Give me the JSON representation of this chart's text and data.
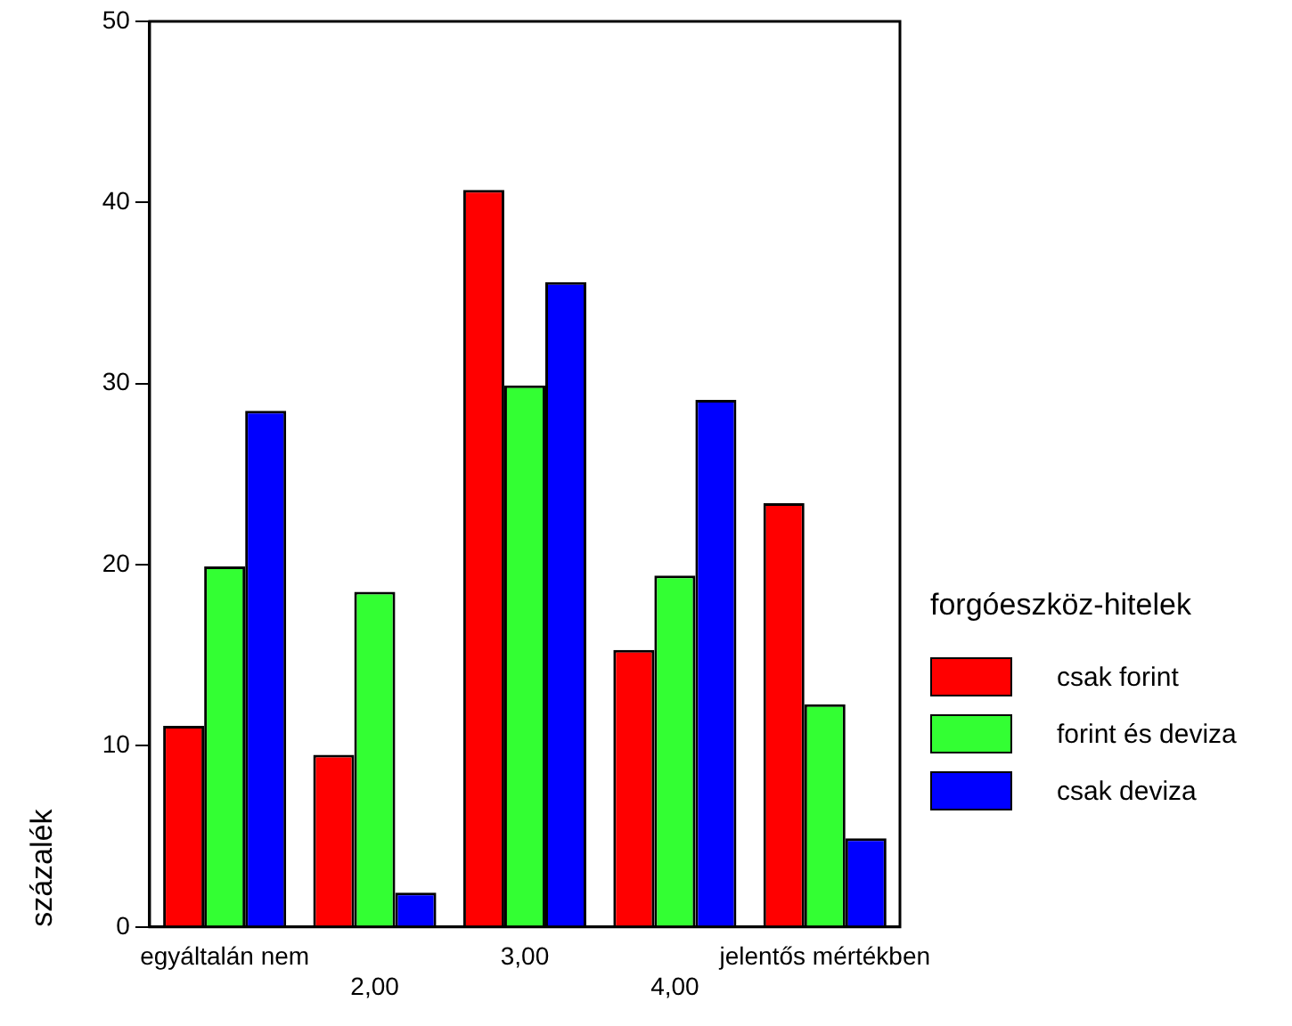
{
  "chart_data": {
    "type": "bar",
    "ylabel": "százalék",
    "legend_title": "forgóeszköz-hitelek",
    "categories": [
      "egyáltalán nem",
      "2,00",
      "3,00",
      "4,00",
      "jelentős mértékben"
    ],
    "series": [
      {
        "name": "csak forint",
        "color": "#ff0000",
        "values": [
          11.1,
          9.5,
          40.7,
          15.3,
          23.4
        ]
      },
      {
        "name": "forint és deviza",
        "color": "#33ff33",
        "values": [
          19.9,
          18.5,
          29.9,
          19.4,
          12.3
        ]
      },
      {
        "name": "csak deviza",
        "color": "#0000ff",
        "values": [
          28.5,
          1.9,
          35.6,
          29.1,
          4.9
        ]
      }
    ],
    "ylim": [
      0,
      50
    ],
    "yticks": [
      0,
      10,
      20,
      30,
      40,
      50
    ],
    "grid": false,
    "legend": "right"
  }
}
